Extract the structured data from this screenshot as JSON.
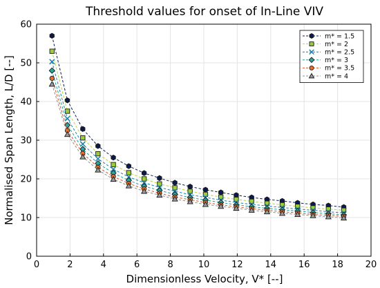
{
  "chart_data": {
    "type": "line",
    "title": "Threshold values for onset of In-Line VIV",
    "xlabel": "Dimensionless Velocity, V* [--]",
    "ylabel": "Normalised Span Length, L/D [--]",
    "xlim": [
      0,
      20
    ],
    "ylim": [
      0,
      60
    ],
    "xticks": [
      0,
      2,
      4,
      6,
      8,
      10,
      12,
      14,
      16,
      18,
      20
    ],
    "yticks": [
      0,
      10,
      20,
      30,
      40,
      50,
      60
    ],
    "grid": true,
    "legend_position": "top-right",
    "x": [
      0.92,
      1.84,
      2.76,
      3.67,
      4.59,
      5.51,
      6.43,
      7.35,
      8.27,
      9.18,
      10.1,
      11.02,
      11.94,
      12.86,
      13.78,
      14.69,
      15.61,
      16.53,
      17.45,
      18.37
    ],
    "series": [
      {
        "name": "m* = 1.5",
        "marker": "hexagon",
        "color": "#0b1a4a",
        "fill": "#0b1a4a",
        "values": [
          57.0,
          40.3,
          32.9,
          28.5,
          25.5,
          23.3,
          21.5,
          20.2,
          19.0,
          18.0,
          17.2,
          16.5,
          15.8,
          15.2,
          14.7,
          14.3,
          13.8,
          13.4,
          13.1,
          12.7
        ]
      },
      {
        "name": "m* = 2",
        "marker": "square",
        "color": "#b7d33a",
        "fill": "#9ccc3a",
        "values": [
          53.0,
          37.5,
          30.6,
          26.5,
          23.7,
          21.6,
          20.0,
          18.7,
          17.7,
          16.8,
          16.0,
          15.3,
          14.7,
          14.2,
          13.7,
          13.3,
          12.9,
          12.5,
          12.2,
          11.9
        ]
      },
      {
        "name": "m* = 2.5",
        "marker": "x",
        "color": "#1e7fa8",
        "fill": "none",
        "values": [
          50.3,
          35.6,
          29.0,
          25.2,
          22.5,
          20.5,
          19.0,
          17.8,
          16.8,
          15.9,
          15.2,
          14.5,
          13.9,
          13.4,
          13.0,
          12.6,
          12.2,
          11.9,
          11.5,
          11.2
        ]
      },
      {
        "name": "m* = 3",
        "marker": "diamond",
        "color": "#1a9e9a",
        "fill": "#2aa89f",
        "values": [
          48.0,
          33.9,
          27.7,
          24.0,
          21.5,
          19.6,
          18.1,
          17.0,
          16.0,
          15.2,
          14.5,
          13.9,
          13.3,
          12.8,
          12.4,
          12.0,
          11.7,
          11.3,
          11.0,
          10.7
        ]
      },
      {
        "name": "m* = 3.5",
        "marker": "circle",
        "color": "#d9541f",
        "fill": "#e8702a",
        "values": [
          46.0,
          32.5,
          26.6,
          23.0,
          20.6,
          18.8,
          17.4,
          16.3,
          15.3,
          14.6,
          13.9,
          13.3,
          12.8,
          12.3,
          11.9,
          11.5,
          11.2,
          10.8,
          10.6,
          10.3
        ]
      },
      {
        "name": "m* = 4",
        "marker": "triangle",
        "color": "#8f8f8f",
        "fill": "#9a9a9a",
        "values": [
          44.5,
          31.5,
          25.7,
          22.3,
          19.9,
          18.2,
          16.8,
          15.8,
          14.8,
          14.1,
          13.4,
          12.9,
          12.4,
          11.9,
          11.5,
          11.1,
          10.8,
          10.5,
          10.2,
          9.9
        ]
      }
    ]
  }
}
